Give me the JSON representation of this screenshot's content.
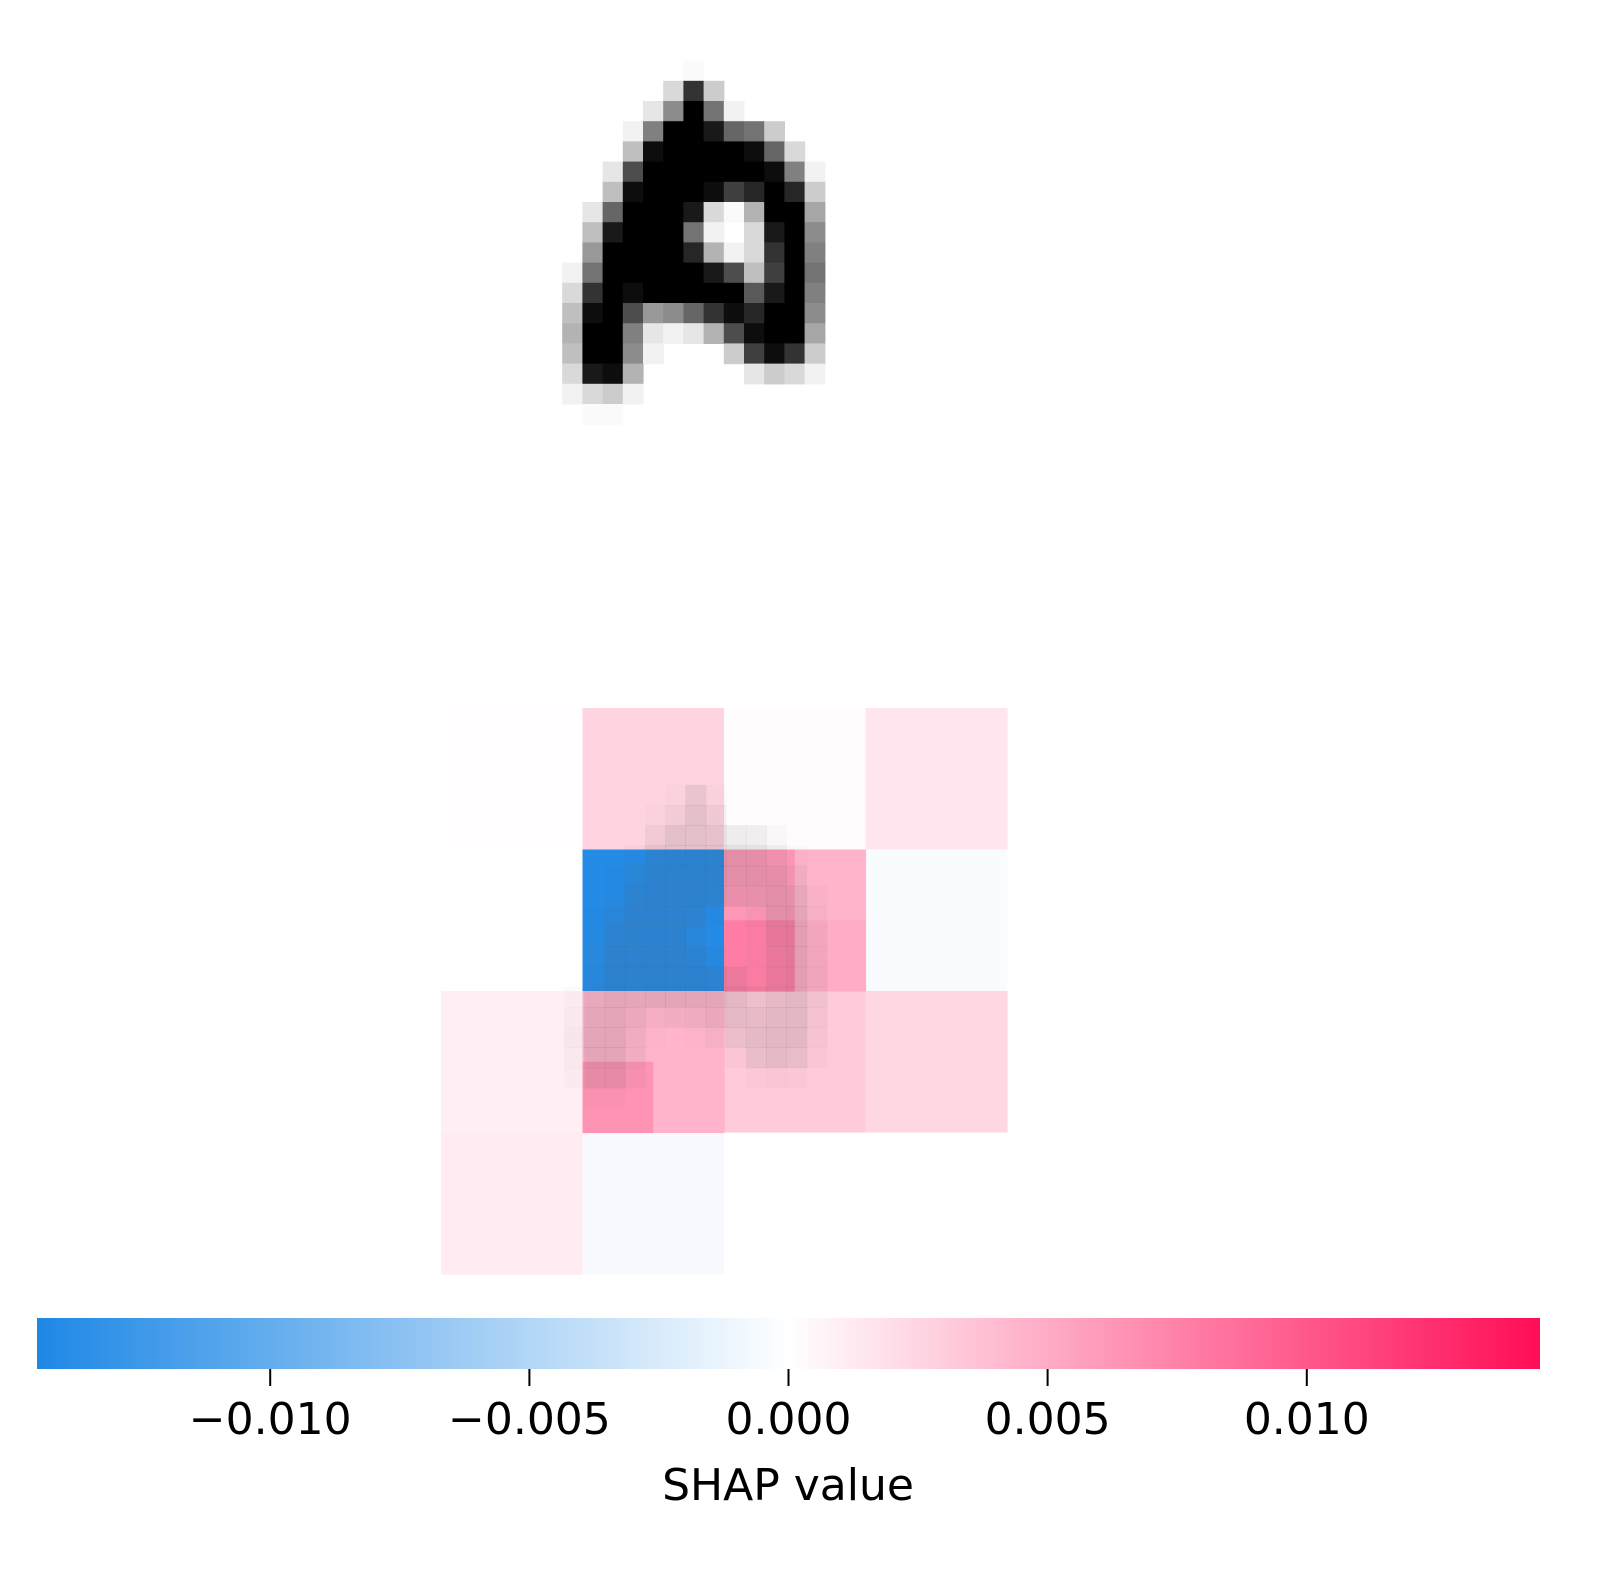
{
  "chart_data": [
    {
      "type": "heatmap",
      "panel": "input-image",
      "image_size": [
        28,
        28
      ],
      "values": [
        [
          0,
          0,
          0,
          0,
          0,
          0,
          0,
          0,
          0,
          0,
          0,
          0,
          0,
          0,
          0,
          0,
          0,
          0,
          0,
          0,
          0,
          0,
          0,
          0,
          0,
          0,
          0,
          0
        ],
        [
          0,
          0,
          0,
          0,
          0,
          0,
          0,
          0,
          0,
          0,
          0,
          0,
          0,
          0,
          0,
          0,
          0,
          0,
          0,
          0,
          0,
          0,
          0,
          0,
          0,
          0,
          0,
          0
        ],
        [
          0,
          0,
          0,
          0,
          0,
          0,
          0,
          0,
          0,
          0,
          0,
          0,
          0,
          0,
          0,
          0,
          0,
          0,
          0,
          0,
          0,
          0,
          0,
          0,
          0,
          0,
          0,
          0
        ],
        [
          0,
          0,
          0,
          0,
          0,
          0,
          0,
          0,
          0,
          0,
          0,
          0,
          0.02,
          0,
          0,
          0,
          0,
          0,
          0,
          0,
          0,
          0,
          0,
          0,
          0,
          0,
          0,
          0
        ],
        [
          0,
          0,
          0,
          0,
          0,
          0,
          0,
          0,
          0,
          0,
          0,
          0.15,
          0.8,
          0.2,
          0,
          0,
          0,
          0,
          0,
          0,
          0,
          0,
          0,
          0,
          0,
          0,
          0,
          0
        ],
        [
          0,
          0,
          0,
          0,
          0,
          0,
          0,
          0,
          0,
          0,
          0.1,
          0.45,
          1,
          0.55,
          0.05,
          0,
          0,
          0,
          0,
          0,
          0,
          0,
          0,
          0,
          0,
          0,
          0,
          0
        ],
        [
          0,
          0,
          0,
          0,
          0,
          0,
          0,
          0,
          0,
          0.05,
          0.5,
          1,
          1,
          0.9,
          0.6,
          0.55,
          0.2,
          0,
          0,
          0,
          0,
          0,
          0,
          0,
          0,
          0,
          0,
          0
        ],
        [
          0,
          0,
          0,
          0,
          0,
          0,
          0,
          0,
          0,
          0.25,
          0.95,
          1,
          1,
          1,
          1,
          0.95,
          0.6,
          0.15,
          0,
          0,
          0,
          0,
          0,
          0,
          0,
          0,
          0,
          0
        ],
        [
          0,
          0,
          0,
          0,
          0,
          0,
          0,
          0,
          0.1,
          0.7,
          1,
          1,
          1,
          1,
          1,
          1,
          0.95,
          0.5,
          0.05,
          0,
          0,
          0,
          0,
          0,
          0,
          0,
          0,
          0
        ],
        [
          0,
          0,
          0,
          0,
          0,
          0,
          0,
          0,
          0.25,
          0.95,
          1,
          1,
          1,
          0.95,
          0.75,
          0.85,
          1,
          0.85,
          0.2,
          0,
          0,
          0,
          0,
          0,
          0,
          0,
          0,
          0
        ],
        [
          0,
          0,
          0,
          0,
          0,
          0,
          0,
          0.1,
          0.6,
          1,
          1,
          1,
          0.9,
          0.15,
          0.02,
          0.3,
          1,
          1,
          0.35,
          0,
          0,
          0,
          0,
          0,
          0,
          0,
          0,
          0
        ],
        [
          0,
          0,
          0,
          0,
          0,
          0,
          0,
          0.25,
          0.9,
          1,
          1,
          1,
          0.55,
          0.05,
          0,
          0.15,
          0.9,
          1,
          0.45,
          0,
          0,
          0,
          0,
          0,
          0,
          0,
          0,
          0
        ],
        [
          0,
          0,
          0,
          0,
          0,
          0,
          0,
          0.4,
          1,
          1,
          1,
          1,
          0.85,
          0.3,
          0.05,
          0.15,
          0.8,
          1,
          0.5,
          0,
          0,
          0,
          0,
          0,
          0,
          0,
          0,
          0
        ],
        [
          0,
          0,
          0,
          0,
          0,
          0,
          0.05,
          0.55,
          1,
          1,
          1,
          1,
          1,
          0.9,
          0.7,
          0.25,
          0.75,
          1,
          0.55,
          0,
          0,
          0,
          0,
          0,
          0,
          0,
          0,
          0
        ],
        [
          0,
          0,
          0,
          0,
          0,
          0,
          0.15,
          0.8,
          1,
          0.95,
          1,
          1,
          1,
          1,
          1,
          0.65,
          0.9,
          1,
          0.5,
          0,
          0,
          0,
          0,
          0,
          0,
          0,
          0,
          0
        ],
        [
          0,
          0,
          0,
          0,
          0,
          0,
          0.25,
          0.95,
          1,
          0.7,
          0.4,
          0.45,
          0.6,
          0.8,
          0.95,
          0.85,
          1,
          1,
          0.45,
          0,
          0,
          0,
          0,
          0,
          0,
          0,
          0,
          0
        ],
        [
          0,
          0,
          0,
          0,
          0,
          0,
          0.3,
          1,
          1,
          0.5,
          0.1,
          0.05,
          0.1,
          0.3,
          0.7,
          0.95,
          1,
          1,
          0.35,
          0,
          0,
          0,
          0,
          0,
          0,
          0,
          0,
          0
        ],
        [
          0,
          0,
          0,
          0,
          0,
          0,
          0.25,
          1,
          1,
          0.45,
          0.05,
          0,
          0,
          0,
          0.2,
          0.75,
          0.95,
          0.8,
          0.2,
          0,
          0,
          0,
          0,
          0,
          0,
          0,
          0,
          0
        ],
        [
          0,
          0,
          0,
          0,
          0,
          0,
          0.15,
          0.9,
          0.95,
          0.3,
          0,
          0,
          0,
          0,
          0,
          0.1,
          0.2,
          0.15,
          0.05,
          0,
          0,
          0,
          0,
          0,
          0,
          0,
          0,
          0
        ],
        [
          0,
          0,
          0,
          0,
          0,
          0,
          0.05,
          0.15,
          0.2,
          0.05,
          0,
          0,
          0,
          0,
          0,
          0,
          0,
          0,
          0,
          0,
          0,
          0,
          0,
          0,
          0,
          0,
          0,
          0
        ],
        [
          0,
          0,
          0,
          0,
          0,
          0,
          0,
          0.02,
          0.02,
          0,
          0,
          0,
          0,
          0,
          0,
          0,
          0,
          0,
          0,
          0,
          0,
          0,
          0,
          0,
          0,
          0,
          0,
          0
        ],
        [
          0,
          0,
          0,
          0,
          0,
          0,
          0,
          0,
          0,
          0,
          0,
          0,
          0,
          0,
          0,
          0,
          0,
          0,
          0,
          0,
          0,
          0,
          0,
          0,
          0,
          0,
          0,
          0
        ],
        [
          0,
          0,
          0,
          0,
          0,
          0,
          0,
          0,
          0,
          0,
          0,
          0,
          0,
          0,
          0,
          0,
          0,
          0,
          0,
          0,
          0,
          0,
          0,
          0,
          0,
          0,
          0,
          0
        ],
        [
          0,
          0,
          0,
          0,
          0,
          0,
          0,
          0,
          0,
          0,
          0,
          0,
          0,
          0,
          0,
          0,
          0,
          0,
          0,
          0,
          0,
          0,
          0,
          0,
          0,
          0,
          0,
          0
        ],
        [
          0,
          0,
          0,
          0,
          0,
          0,
          0,
          0,
          0,
          0,
          0,
          0,
          0,
          0,
          0,
          0,
          0,
          0,
          0,
          0,
          0,
          0,
          0,
          0,
          0,
          0,
          0,
          0
        ],
        [
          0,
          0,
          0,
          0,
          0,
          0,
          0,
          0,
          0,
          0,
          0,
          0,
          0,
          0,
          0,
          0,
          0,
          0,
          0,
          0,
          0,
          0,
          0,
          0,
          0,
          0,
          0,
          0
        ],
        [
          0,
          0,
          0,
          0,
          0,
          0,
          0,
          0,
          0,
          0,
          0,
          0,
          0,
          0,
          0,
          0,
          0,
          0,
          0,
          0,
          0,
          0,
          0,
          0,
          0,
          0,
          0,
          0
        ],
        [
          0,
          0,
          0,
          0,
          0,
          0,
          0,
          0,
          0,
          0,
          0,
          0,
          0,
          0,
          0,
          0,
          0,
          0,
          0,
          0,
          0,
          0,
          0,
          0,
          0,
          0,
          0,
          0
        ]
      ]
    },
    {
      "type": "heatmap",
      "panel": "shap-explanation",
      "grid_size": [
        4,
        4
      ],
      "values": [
        [
          0.0001,
          0.0026,
          0.0002,
          0.0015
        ],
        [
          0.0,
          -0.0141,
          0.0052,
          -0.0004
        ],
        [
          0.001,
          0.0045,
          0.0032,
          0.0024
        ],
        [
          0.0012,
          -0.0006,
          0.0,
          0.0
        ]
      ],
      "sub_values": [
        {
          "row": 1,
          "col": 2,
          "quadrants": [
            0.0062,
            0.0045,
            0.0078,
            0.005
          ]
        },
        {
          "row": 2,
          "col": 1,
          "quadrants": [
            0.0045,
            0.0045,
            0.0065,
            0.0045
          ]
        }
      ],
      "colormap": {
        "negative": "#1e88e5",
        "zero": "#ffffff",
        "positive": "#ff0d57"
      },
      "clim": [
        -0.0145,
        0.0145
      ]
    }
  ],
  "colorbar": {
    "ticks": [
      -0.01,
      -0.005,
      0.0,
      0.005,
      0.01
    ],
    "tick_labels": [
      "−0.010",
      "−0.005",
      "0.000",
      "0.005",
      "0.010"
    ],
    "label": "SHAP value",
    "range": [
      -0.0145,
      0.0145
    ],
    "color_negative": "#1e88e5",
    "color_zero": "#ffffff",
    "color_positive": "#ff0d57"
  }
}
